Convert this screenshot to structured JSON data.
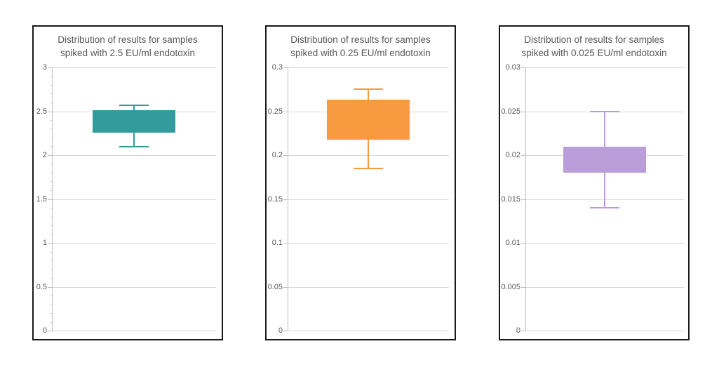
{
  "page": {
    "background": "#ffffff"
  },
  "colors": {
    "grid": "#d9d9d9",
    "axis": "#bfbfbf",
    "tick_text": "#595959",
    "title_text": "#595959",
    "panel_border": "#1a1a1a"
  },
  "chart_data": [
    {
      "type": "boxplot",
      "title_lines": [
        "Distribution of results for samples",
        "spiked with 2.5 EU/ml endotoxin"
      ],
      "ylim": [
        0,
        3
      ],
      "yticks": [
        3,
        2.5,
        2,
        1.5,
        1,
        0.5,
        0
      ],
      "ytick_labels": [
        "3",
        "2.5",
        "2",
        "1.5",
        "1",
        "0.5",
        "0"
      ],
      "minor_tick_step": 0.1,
      "grid": true,
      "series_color": "#339b9b",
      "box": {
        "whisker_min": 2.1,
        "q1": 2.26,
        "q3": 2.51,
        "whisker_max": 2.57
      }
    },
    {
      "type": "boxplot",
      "title_lines": [
        "Distribution of results for samples",
        "spiked with 0.25 EU/ml endotoxin"
      ],
      "ylim": [
        0,
        0.3
      ],
      "yticks": [
        0.3,
        0.25,
        0.2,
        0.15,
        0.1,
        0.05,
        0
      ],
      "ytick_labels": [
        "0.3",
        "0.25",
        "0.2",
        "0.15",
        "0.1",
        "0.05",
        "0"
      ],
      "minor_tick_step": null,
      "grid": true,
      "series_color": "#f89b40",
      "box": {
        "whisker_min": 0.185,
        "q1": 0.218,
        "q3": 0.263,
        "whisker_max": 0.275
      }
    },
    {
      "type": "boxplot",
      "title_lines": [
        "Distribution of results for samples",
        "spiked with 0.025 EU/ml endotoxin"
      ],
      "ylim": [
        0,
        0.03
      ],
      "yticks": [
        0.03,
        0.025,
        0.02,
        0.015,
        0.01,
        0.005,
        0
      ],
      "ytick_labels": [
        "0.03",
        "0.025",
        "0.02",
        "0.015",
        "0.01",
        "0.005",
        "0"
      ],
      "minor_tick_step": null,
      "grid": true,
      "series_color": "#bb9dda",
      "box": {
        "whisker_min": 0.014,
        "q1": 0.018,
        "q3": 0.021,
        "whisker_max": 0.025
      }
    }
  ]
}
